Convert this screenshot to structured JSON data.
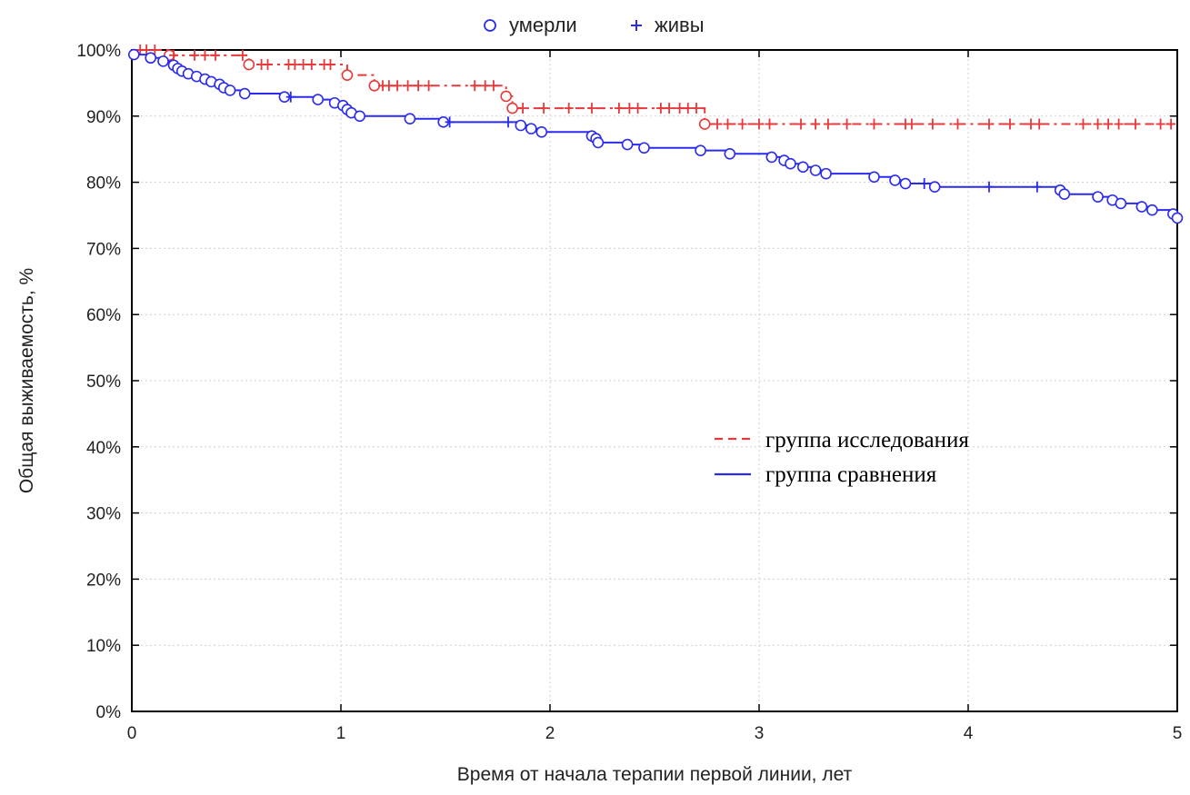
{
  "chart_data": {
    "type": "line",
    "xlabel": "Время от начала терапии первой линии, лет",
    "ylabel": "Общая выживаемость, %",
    "xlim": [
      0,
      5
    ],
    "ylim": [
      0,
      100
    ],
    "x_ticks": [
      "0",
      "1",
      "2",
      "3",
      "4",
      "5"
    ],
    "y_ticks": [
      "0%",
      "10%",
      "20%",
      "30%",
      "40%",
      "50%",
      "60%",
      "70%",
      "80%",
      "90%",
      "100%"
    ],
    "grid": true,
    "marker_legend": {
      "placement": "top-center",
      "died_label": "умерли",
      "died_symbol": "○",
      "alive_label": "живы",
      "alive_symbol": "+"
    },
    "line_legend": {
      "placement": "center-right"
    },
    "series": [
      {
        "name": "группа исследования",
        "color": "#e8383a",
        "style": "dash-dot",
        "steps": [
          [
            0,
            100
          ],
          [
            0.18,
            99.2
          ],
          [
            0.56,
            97.8
          ],
          [
            1.03,
            96.2
          ],
          [
            1.16,
            94.6
          ],
          [
            1.79,
            93.0
          ],
          [
            1.82,
            91.2
          ],
          [
            2.74,
            88.8
          ],
          [
            5.0,
            88.8
          ]
        ],
        "died": [
          [
            0.18,
            99.2
          ],
          [
            0.56,
            97.8
          ],
          [
            1.03,
            96.2
          ],
          [
            1.16,
            94.6
          ],
          [
            1.79,
            93.0
          ],
          [
            1.82,
            91.2
          ],
          [
            2.74,
            88.8
          ]
        ],
        "censored": [
          [
            0.04,
            100
          ],
          [
            0.07,
            100
          ],
          [
            0.11,
            100
          ],
          [
            0.2,
            99.2
          ],
          [
            0.3,
            99.2
          ],
          [
            0.35,
            99.2
          ],
          [
            0.4,
            99.2
          ],
          [
            0.53,
            99.2
          ],
          [
            0.62,
            97.8
          ],
          [
            0.65,
            97.8
          ],
          [
            0.75,
            97.8
          ],
          [
            0.78,
            97.8
          ],
          [
            0.82,
            97.8
          ],
          [
            0.86,
            97.8
          ],
          [
            0.92,
            97.8
          ],
          [
            0.95,
            97.8
          ],
          [
            1.2,
            94.6
          ],
          [
            1.23,
            94.6
          ],
          [
            1.27,
            94.6
          ],
          [
            1.32,
            94.6
          ],
          [
            1.37,
            94.6
          ],
          [
            1.42,
            94.6
          ],
          [
            1.64,
            94.6
          ],
          [
            1.69,
            94.6
          ],
          [
            1.73,
            94.6
          ],
          [
            1.87,
            91.2
          ],
          [
            1.97,
            91.2
          ],
          [
            2.09,
            91.2
          ],
          [
            2.2,
            91.2
          ],
          [
            2.33,
            91.2
          ],
          [
            2.38,
            91.2
          ],
          [
            2.42,
            91.2
          ],
          [
            2.53,
            91.2
          ],
          [
            2.57,
            91.2
          ],
          [
            2.62,
            91.2
          ],
          [
            2.66,
            91.2
          ],
          [
            2.7,
            91.2
          ],
          [
            2.8,
            88.8
          ],
          [
            2.85,
            88.8
          ],
          [
            2.92,
            88.8
          ],
          [
            3.0,
            88.8
          ],
          [
            3.05,
            88.8
          ],
          [
            3.2,
            88.8
          ],
          [
            3.27,
            88.8
          ],
          [
            3.33,
            88.8
          ],
          [
            3.42,
            88.8
          ],
          [
            3.55,
            88.8
          ],
          [
            3.7,
            88.8
          ],
          [
            3.73,
            88.8
          ],
          [
            3.83,
            88.8
          ],
          [
            3.95,
            88.8
          ],
          [
            4.1,
            88.8
          ],
          [
            4.2,
            88.8
          ],
          [
            4.3,
            88.8
          ],
          [
            4.34,
            88.8
          ],
          [
            4.55,
            88.8
          ],
          [
            4.62,
            88.8
          ],
          [
            4.67,
            88.8
          ],
          [
            4.72,
            88.8
          ],
          [
            4.8,
            88.8
          ],
          [
            4.92,
            88.8
          ],
          [
            4.97,
            88.8
          ]
        ]
      },
      {
        "name": "группа сравнения",
        "color": "#2b2bef",
        "style": "solid",
        "steps": [
          [
            0,
            100
          ],
          [
            0.01,
            99.3
          ],
          [
            0.09,
            98.8
          ],
          [
            0.15,
            98.3
          ],
          [
            0.2,
            97.7
          ],
          [
            0.22,
            97.2
          ],
          [
            0.24,
            96.8
          ],
          [
            0.27,
            96.4
          ],
          [
            0.31,
            96.0
          ],
          [
            0.35,
            95.6
          ],
          [
            0.38,
            95.2
          ],
          [
            0.42,
            94.8
          ],
          [
            0.44,
            94.3
          ],
          [
            0.47,
            93.9
          ],
          [
            0.54,
            93.4
          ],
          [
            0.73,
            92.9
          ],
          [
            0.89,
            92.5
          ],
          [
            0.97,
            92.0
          ],
          [
            1.01,
            91.6
          ],
          [
            1.03,
            91.0
          ],
          [
            1.05,
            90.5
          ],
          [
            1.09,
            90.0
          ],
          [
            1.33,
            89.6
          ],
          [
            1.49,
            89.1
          ],
          [
            1.86,
            88.6
          ],
          [
            1.91,
            88.1
          ],
          [
            1.96,
            87.6
          ],
          [
            2.2,
            87.0
          ],
          [
            2.22,
            86.6
          ],
          [
            2.23,
            86.0
          ],
          [
            2.37,
            85.7
          ],
          [
            2.45,
            85.2
          ],
          [
            2.72,
            84.8
          ],
          [
            2.86,
            84.3
          ],
          [
            3.06,
            83.8
          ],
          [
            3.12,
            83.3
          ],
          [
            3.15,
            82.8
          ],
          [
            3.21,
            82.3
          ],
          [
            3.27,
            81.8
          ],
          [
            3.32,
            81.3
          ],
          [
            3.55,
            80.8
          ],
          [
            3.65,
            80.3
          ],
          [
            3.7,
            79.8
          ],
          [
            3.84,
            79.3
          ],
          [
            4.44,
            78.8
          ],
          [
            4.46,
            78.2
          ],
          [
            4.62,
            77.8
          ],
          [
            4.69,
            77.3
          ],
          [
            4.73,
            76.8
          ],
          [
            4.83,
            76.3
          ],
          [
            4.88,
            75.8
          ],
          [
            4.98,
            75.2
          ],
          [
            5.0,
            74.6
          ]
        ],
        "died": [
          [
            0.01,
            99.3
          ],
          [
            0.09,
            98.8
          ],
          [
            0.15,
            98.3
          ],
          [
            0.2,
            97.7
          ],
          [
            0.22,
            97.2
          ],
          [
            0.24,
            96.8
          ],
          [
            0.27,
            96.4
          ],
          [
            0.31,
            96.0
          ],
          [
            0.35,
            95.6
          ],
          [
            0.38,
            95.2
          ],
          [
            0.42,
            94.8
          ],
          [
            0.44,
            94.3
          ],
          [
            0.47,
            93.9
          ],
          [
            0.54,
            93.4
          ],
          [
            0.73,
            92.9
          ],
          [
            0.89,
            92.5
          ],
          [
            0.97,
            92.0
          ],
          [
            1.01,
            91.6
          ],
          [
            1.03,
            91.0
          ],
          [
            1.05,
            90.5
          ],
          [
            1.09,
            90.0
          ],
          [
            1.33,
            89.6
          ],
          [
            1.49,
            89.1
          ],
          [
            1.86,
            88.6
          ],
          [
            1.91,
            88.1
          ],
          [
            1.96,
            87.6
          ],
          [
            2.2,
            87.0
          ],
          [
            2.22,
            86.6
          ],
          [
            2.23,
            86.0
          ],
          [
            2.37,
            85.7
          ],
          [
            2.45,
            85.2
          ],
          [
            2.72,
            84.8
          ],
          [
            2.86,
            84.3
          ],
          [
            3.06,
            83.8
          ],
          [
            3.12,
            83.3
          ],
          [
            3.15,
            82.8
          ],
          [
            3.21,
            82.3
          ],
          [
            3.27,
            81.8
          ],
          [
            3.32,
            81.3
          ],
          [
            3.55,
            80.8
          ],
          [
            3.65,
            80.3
          ],
          [
            3.7,
            79.8
          ],
          [
            3.84,
            79.3
          ],
          [
            4.44,
            78.8
          ],
          [
            4.46,
            78.2
          ],
          [
            4.62,
            77.8
          ],
          [
            4.69,
            77.3
          ],
          [
            4.73,
            76.8
          ],
          [
            4.83,
            76.3
          ],
          [
            4.88,
            75.8
          ],
          [
            4.98,
            75.2
          ],
          [
            5.0,
            74.6
          ]
        ],
        "censored": [
          [
            0.76,
            92.9
          ],
          [
            1.52,
            89.1
          ],
          [
            1.8,
            89.1
          ],
          [
            3.79,
            79.8
          ],
          [
            4.1,
            79.3
          ],
          [
            4.33,
            79.3
          ]
        ]
      }
    ]
  }
}
